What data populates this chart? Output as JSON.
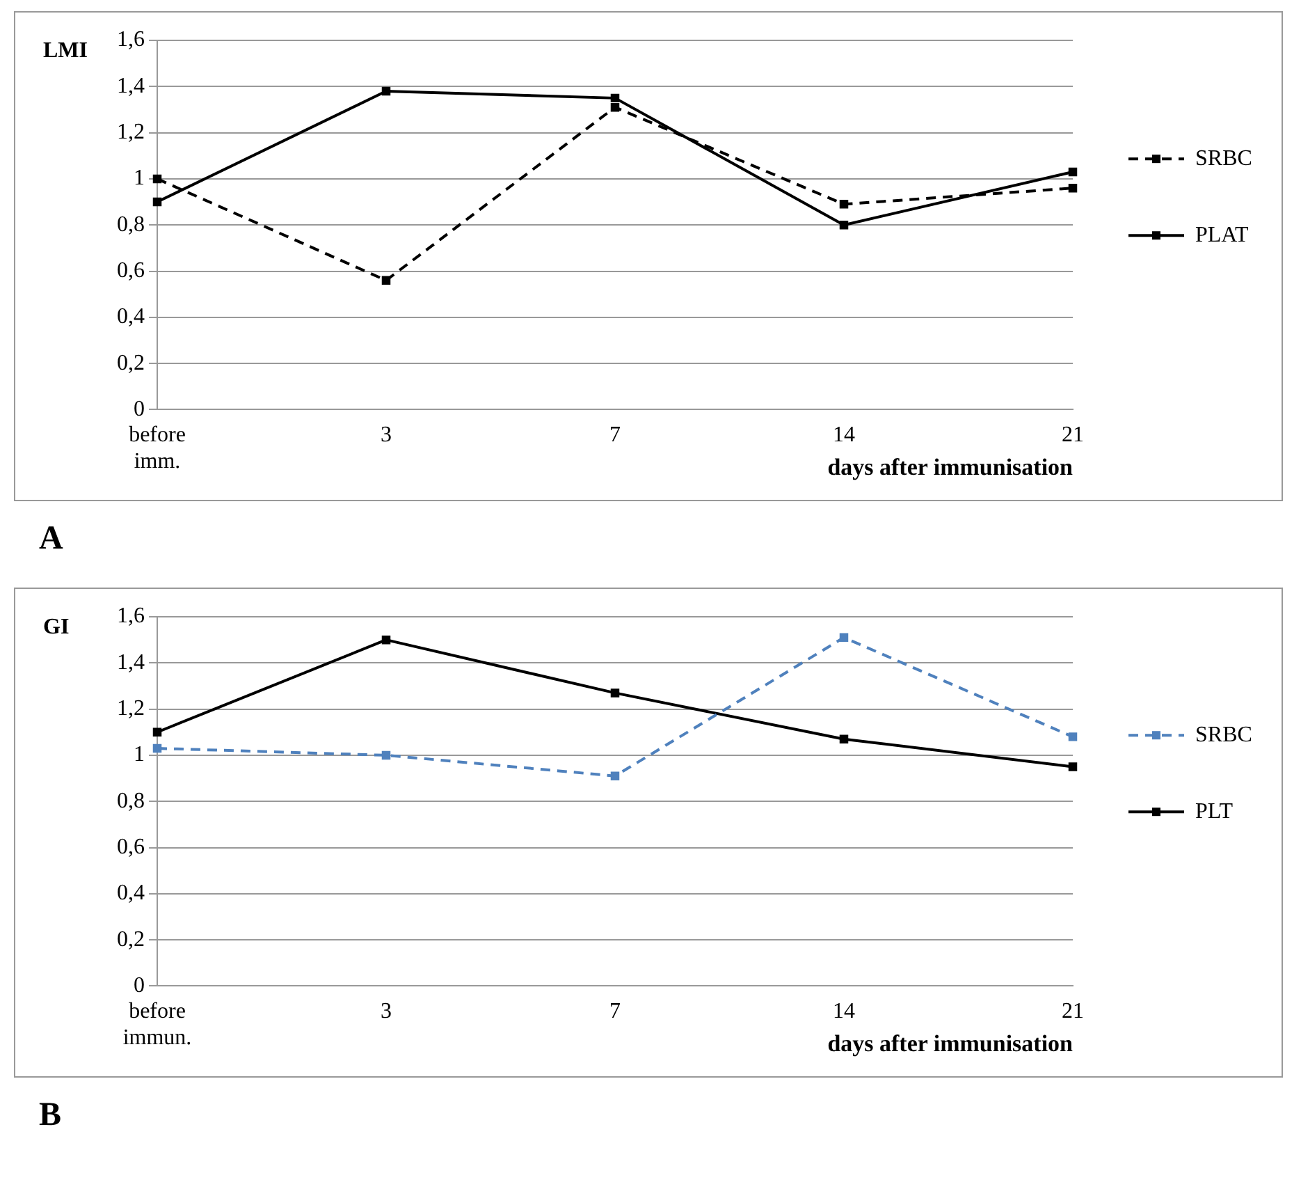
{
  "chart_data": [
    {
      "type": "line",
      "ylabel": "LMI",
      "xlabel": "days after immunisation",
      "annotations": [
        "A"
      ],
      "categories": [
        "before imm.",
        "3",
        "7",
        "14",
        "21"
      ],
      "series": [
        {
          "name": "SRBC",
          "color": "#000000",
          "line_style": "dashed",
          "values": [
            1.0,
            0.56,
            1.31,
            0.89,
            0.96
          ]
        },
        {
          "name": "PLAT",
          "color": "#000000",
          "line_style": "solid",
          "values": [
            0.9,
            1.38,
            1.35,
            0.8,
            1.03
          ]
        }
      ],
      "ylim": [
        0,
        1.6
      ],
      "yticks": [
        {
          "value": 0,
          "label": "0"
        },
        {
          "value": 0.2,
          "label": "0,2"
        },
        {
          "value": 0.4,
          "label": "0,4"
        },
        {
          "value": 0.6,
          "label": "0,6"
        },
        {
          "value": 0.8,
          "label": "0,8"
        },
        {
          "value": 1,
          "label": "1"
        },
        {
          "value": 1.2,
          "label": "1,2"
        },
        {
          "value": 1.4,
          "label": "1,4"
        },
        {
          "value": 1.6,
          "label": "1,6"
        }
      ],
      "grid": "y",
      "legend": "right",
      "marker": "square"
    },
    {
      "type": "line",
      "ylabel": "GI",
      "xlabel": "days after immunisation",
      "annotations": [
        "B"
      ],
      "categories": [
        "before immun.",
        "3",
        "7",
        "14",
        "21"
      ],
      "series": [
        {
          "name": "SRBC",
          "color": "#4f81bd",
          "line_style": "dashed",
          "values": [
            1.03,
            1.0,
            0.91,
            1.51,
            1.08
          ]
        },
        {
          "name": "PLT",
          "color": "#000000",
          "line_style": "solid",
          "values": [
            1.1,
            1.5,
            1.27,
            1.07,
            0.95
          ]
        }
      ],
      "ylim": [
        0,
        1.6
      ],
      "yticks": [
        {
          "value": 0,
          "label": "0"
        },
        {
          "value": 0.2,
          "label": "0,2"
        },
        {
          "value": 0.4,
          "label": "0,4"
        },
        {
          "value": 0.6,
          "label": "0,6"
        },
        {
          "value": 0.8,
          "label": "0,8"
        },
        {
          "value": 1,
          "label": "1"
        },
        {
          "value": 1.2,
          "label": "1,2"
        },
        {
          "value": 1.4,
          "label": "1,4"
        },
        {
          "value": 1.6,
          "label": "1,6"
        }
      ],
      "grid": "y",
      "legend": "right",
      "marker": "square"
    }
  ]
}
